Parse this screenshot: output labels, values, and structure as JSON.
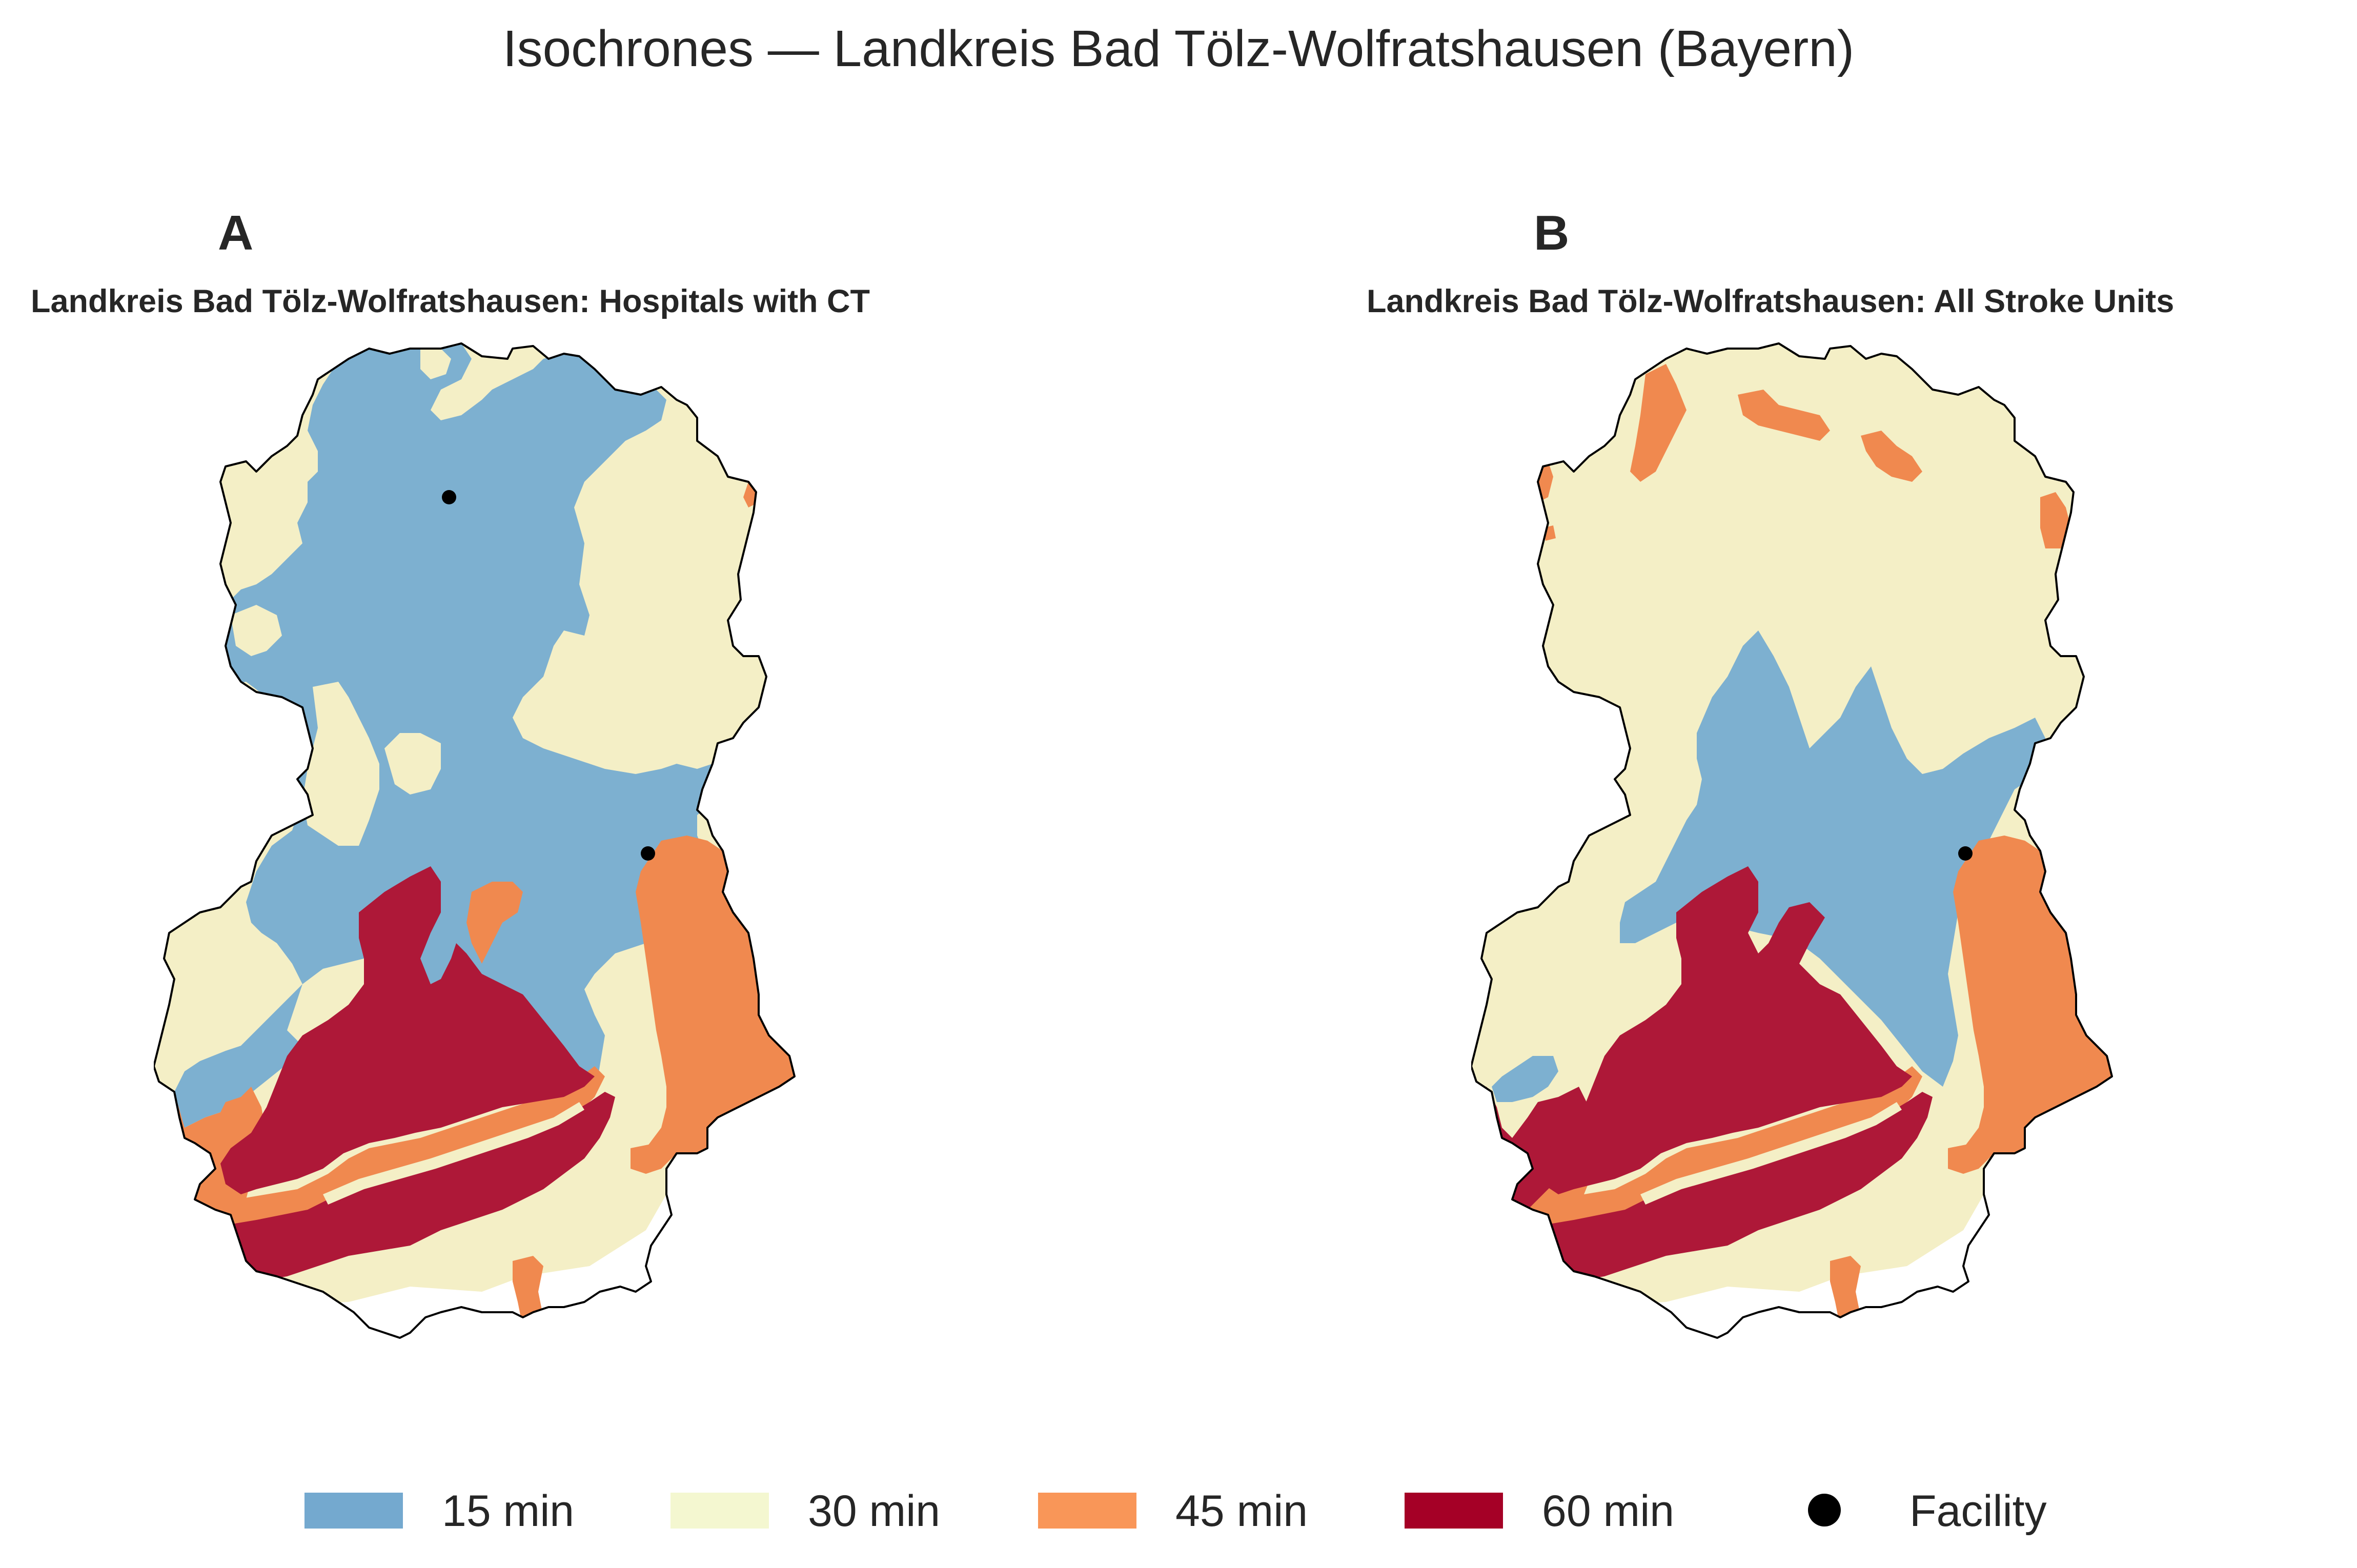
{
  "title": "Isochrones — Landkreis Bad Tölz-Wolfratshausen (Bayern)",
  "panels": [
    {
      "letter": "A",
      "title": "Landkreis Bad Tölz-Wolfratshausen: Hospitals with CT",
      "facilities_count": 2
    },
    {
      "letter": "B",
      "title": "Landkreis Bad Tölz-Wolfratshausen: All Stroke Units",
      "facilities_count": 1
    }
  ],
  "legend": {
    "items": [
      {
        "label": "15 min",
        "color": "#7db0d0"
      },
      {
        "label": "30 min",
        "color": "#f4efc6"
      },
      {
        "label": "45 min",
        "color": "#f0894f"
      },
      {
        "label": "60 min",
        "color": "#ae1838"
      }
    ],
    "facility_label": "Facility",
    "facility_color": "#000000"
  },
  "colors": {
    "outline": "#000000",
    "background": "#ffffff",
    "legend_15": "#74a9cf",
    "legend_30": "#f4f7d0",
    "legend_45": "#f99658",
    "legend_60": "#a50026"
  }
}
